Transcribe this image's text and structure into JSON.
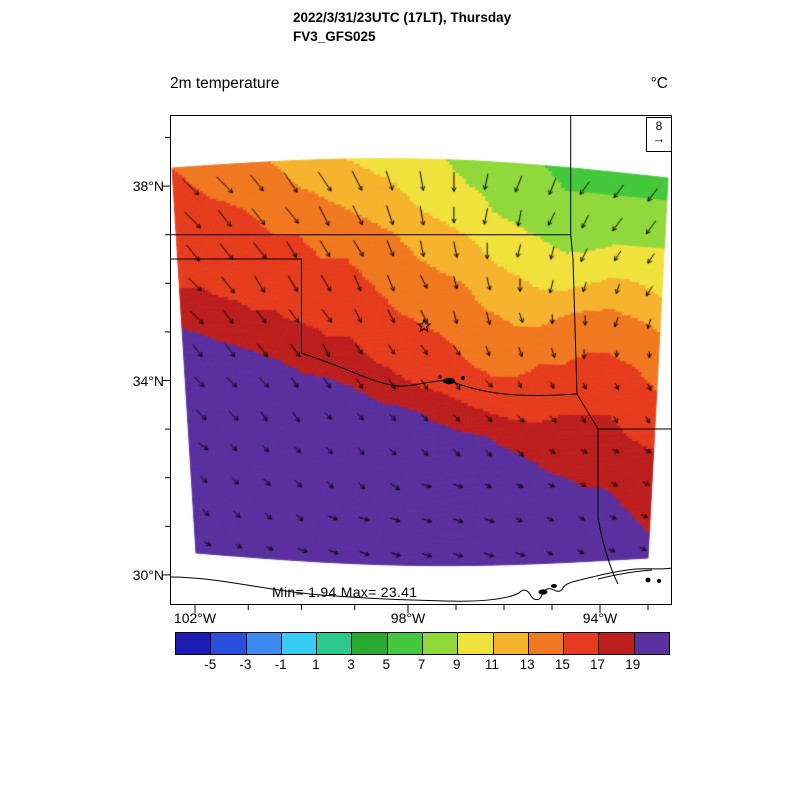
{
  "header": {
    "line1": "2022/3/31/23UTC (17LT), Thursday",
    "line2": "FV3_GFS025"
  },
  "plot": {
    "variable_label": "2m temperature",
    "units_label": "°C",
    "ref_vector_label": "8",
    "stats_label": "Min= 1.94 Max= 23.41"
  },
  "axes": {
    "lat_labels": [
      {
        "text": "38°N",
        "deg": 38
      },
      {
        "text": "34°N",
        "deg": 34
      },
      {
        "text": "30°N",
        "deg": 30
      }
    ],
    "lat_minor_deg": [
      39,
      37,
      36,
      35,
      33,
      32,
      31
    ],
    "lon_labels": [
      {
        "text": "102°W",
        "deg": 102
      },
      {
        "text": "98°W",
        "deg": 98
      },
      {
        "text": "94°W",
        "deg": 94
      }
    ],
    "lon_minor_deg": [
      101,
      100,
      99,
      97,
      96,
      95,
      93
    ]
  },
  "chart_data": {
    "type": "heatmap",
    "title": "2m temperature",
    "units": "°C",
    "model_label": "FV3_GFS025",
    "valid_time_label": "2022/3/31/23UTC (17LT), Thursday",
    "stats": {
      "min": 1.94,
      "max": 23.41
    },
    "levels": [
      -5,
      -3,
      -1,
      1,
      3,
      5,
      7,
      9,
      11,
      13,
      15,
      17,
      19
    ],
    "palette": [
      "#1c1cb4",
      "#2850dc",
      "#3c8cf0",
      "#38ccf4",
      "#2cc88c",
      "#28aa30",
      "#44c83c",
      "#90d83c",
      "#f0e13c",
      "#f5b32e",
      "#f07820",
      "#e63c1e",
      "#bc1e1e",
      "#5a2f9e"
    ],
    "axis_hints": {
      "lat_range": [
        29.4,
        39.5
      ],
      "lon_west_range": [
        102.5,
        92.6
      ],
      "grid": "off",
      "colorbar_position": "bottom"
    },
    "grid": {
      "values": [
        [
          15,
          14.5,
          14,
          13.5,
          13,
          12.5,
          12,
          11,
          10.5,
          10,
          9.5,
          9,
          8.5,
          8,
          7.5,
          7,
          6.5,
          6.5,
          6.5,
          6.5,
          6.5
        ],
        [
          15.5,
          15,
          14.5,
          14,
          13.5,
          13,
          12.5,
          12,
          11.5,
          11,
          10,
          9.5,
          9,
          8.5,
          8,
          7.5,
          7,
          7,
          7,
          7,
          7
        ],
        [
          16,
          15.5,
          15.5,
          15,
          14.5,
          14,
          13.5,
          13,
          12.5,
          12,
          11,
          10.5,
          10,
          9,
          8.5,
          8,
          7.5,
          7.5,
          7.5,
          7.5,
          8
        ],
        [
          16.5,
          16,
          16,
          15.5,
          15,
          15,
          14.5,
          14,
          13.5,
          13,
          12,
          11.5,
          11,
          10,
          9.5,
          9,
          8.5,
          8.5,
          9,
          9,
          9
        ],
        [
          16.5,
          16.5,
          16,
          16,
          15.5,
          15.5,
          15,
          15,
          14.5,
          14,
          13,
          12.5,
          12,
          11,
          10.5,
          10,
          9.5,
          10,
          10.5,
          10.5,
          10
        ],
        [
          17,
          17,
          16.5,
          16.5,
          16.5,
          16,
          15.5,
          15.5,
          15,
          14.5,
          14,
          13.5,
          13,
          12,
          11.5,
          11,
          11,
          11.5,
          12,
          11.5,
          11
        ],
        [
          18,
          17.5,
          17.5,
          17,
          17,
          16.5,
          16.5,
          16,
          15.5,
          15,
          14.5,
          14,
          13.5,
          13,
          12.5,
          12.5,
          13,
          13.5,
          13.5,
          13,
          12.5
        ],
        [
          19.5,
          19,
          18.5,
          18,
          17.5,
          17.5,
          17,
          17,
          16.5,
          16,
          15.5,
          15,
          14.5,
          14,
          13.5,
          13.5,
          14,
          14.5,
          14.5,
          14,
          13.5
        ],
        [
          20.5,
          20,
          20,
          19.5,
          19,
          18.5,
          18,
          17.5,
          17,
          16.5,
          16,
          15.5,
          15,
          14.5,
          14.5,
          15,
          15,
          15.5,
          15.5,
          15,
          14.5
        ],
        [
          21,
          21,
          20.5,
          20.5,
          20,
          19.5,
          19.5,
          19,
          18.5,
          17.5,
          17,
          16.5,
          16,
          15.5,
          15.5,
          15.5,
          16,
          16.5,
          16,
          15.5,
          15
        ],
        [
          21.5,
          21.5,
          21,
          21,
          20.5,
          20.5,
          20,
          20,
          19.5,
          19.5,
          19,
          18.5,
          17.5,
          17,
          16.5,
          16.5,
          17,
          17,
          17,
          16.5,
          16
        ],
        [
          22,
          21.5,
          21.5,
          21,
          21,
          21,
          20.5,
          20.5,
          20,
          20,
          19.5,
          19.5,
          19.5,
          19,
          18.5,
          18,
          18,
          17.5,
          17.5,
          17,
          16.5
        ],
        [
          22,
          22,
          22,
          21.5,
          21.5,
          21,
          21,
          21,
          20.5,
          20.5,
          20,
          20,
          20,
          19.5,
          19.5,
          19,
          18.5,
          18.5,
          18,
          18,
          17.5
        ],
        [
          22.5,
          22.5,
          22,
          22,
          22,
          21.5,
          21.5,
          21,
          21,
          21,
          20.5,
          20.5,
          20,
          20,
          20,
          19.5,
          19.5,
          19,
          19,
          18.5,
          18
        ],
        [
          23,
          22.5,
          22.5,
          22,
          22,
          22,
          21.5,
          21.5,
          21,
          21,
          21,
          20.5,
          20.5,
          20,
          20,
          20,
          19.5,
          19.5,
          19.5,
          19,
          18.5
        ],
        [
          23,
          23,
          22.5,
          22.5,
          22.5,
          22,
          22,
          21.5,
          21.5,
          21.5,
          21,
          21,
          20.5,
          20.5,
          20.5,
          20,
          20,
          20,
          19.5,
          19.5,
          19
        ],
        [
          23,
          23,
          23,
          22.5,
          22.5,
          22.5,
          22,
          22,
          22,
          21.5,
          21.5,
          21,
          21,
          21,
          20.5,
          20.5,
          20.5,
          20,
          20,
          19.5,
          19.5
        ]
      ]
    },
    "wind": {
      "reference": 8,
      "u": [
        [
          5,
          5,
          4,
          4,
          4,
          3,
          2,
          1,
          0,
          -1,
          -2,
          -2,
          -3,
          -3,
          -3
        ],
        [
          5,
          4,
          4,
          4,
          3,
          3,
          2,
          1,
          0,
          -1,
          -1,
          -2,
          -2,
          -3,
          -3
        ],
        [
          4,
          4,
          4,
          3,
          3,
          3,
          2,
          1,
          1,
          0,
          -1,
          -1,
          -2,
          -2,
          -2
        ],
        [
          4,
          4,
          3,
          3,
          3,
          2,
          2,
          2,
          1,
          1,
          0,
          -1,
          -1,
          -1,
          -2
        ],
        [
          4,
          3,
          3,
          3,
          3,
          2,
          2,
          2,
          1,
          1,
          1,
          0,
          0,
          -1,
          -1
        ],
        [
          3,
          3,
          3,
          3,
          2,
          2,
          2,
          2,
          2,
          1,
          1,
          1,
          0,
          0,
          0
        ],
        [
          3,
          3,
          3,
          2,
          2,
          2,
          2,
          2,
          2,
          2,
          1,
          1,
          1,
          1,
          1
        ],
        [
          3,
          3,
          2,
          2,
          2,
          2,
          2,
          2,
          2,
          2,
          2,
          2,
          1,
          1,
          1
        ],
        [
          3,
          2,
          2,
          2,
          2,
          2,
          2,
          2,
          2,
          2,
          2,
          2,
          2,
          2,
          2
        ],
        [
          2,
          2,
          2,
          2,
          2,
          2,
          3,
          3,
          3,
          2,
          2,
          2,
          2,
          2,
          2
        ],
        [
          2,
          2,
          2,
          2,
          3,
          3,
          3,
          3,
          3,
          3,
          2,
          2,
          2,
          2,
          2
        ],
        [
          2,
          2,
          2,
          3,
          3,
          3,
          3,
          3,
          3,
          3,
          3,
          2,
          2,
          2,
          2
        ]
      ],
      "v": [
        [
          -5,
          -5,
          -5,
          -6,
          -6,
          -6,
          -6,
          -6,
          -6,
          -5,
          -5,
          -5,
          -4,
          -4,
          -4
        ],
        [
          -5,
          -5,
          -5,
          -5,
          -6,
          -6,
          -6,
          -6,
          -5,
          -5,
          -5,
          -4,
          -4,
          -4,
          -4
        ],
        [
          -5,
          -5,
          -5,
          -5,
          -5,
          -5,
          -5,
          -5,
          -5,
          -5,
          -4,
          -4,
          -4,
          -3,
          -3
        ],
        [
          -4,
          -5,
          -5,
          -5,
          -5,
          -5,
          -5,
          -4,
          -4,
          -4,
          -4,
          -4,
          -3,
          -3,
          -3
        ],
        [
          -4,
          -4,
          -4,
          -4,
          -4,
          -4,
          -4,
          -4,
          -4,
          -4,
          -3,
          -3,
          -3,
          -3,
          -3
        ],
        [
          -4,
          -4,
          -4,
          -4,
          -4,
          -3,
          -3,
          -3,
          -3,
          -3,
          -3,
          -3,
          -3,
          -2,
          -2
        ],
        [
          -3,
          -3,
          -3,
          -3,
          -3,
          -3,
          -3,
          -3,
          -3,
          -2,
          -2,
          -2,
          -2,
          -2,
          -2
        ],
        [
          -3,
          -3,
          -3,
          -3,
          -2,
          -2,
          -2,
          -2,
          -2,
          -2,
          -2,
          -2,
          -2,
          -2,
          -2
        ],
        [
          -2,
          -2,
          -2,
          -2,
          -2,
          -2,
          -2,
          -2,
          -2,
          -2,
          -2,
          -1,
          -1,
          -1,
          -1
        ],
        [
          -2,
          -2,
          -2,
          -2,
          -2,
          -2,
          -2,
          -1,
          -1,
          -1,
          -1,
          -1,
          -1,
          -1,
          -1
        ],
        [
          -2,
          -2,
          -2,
          -2,
          -1,
          -1,
          -1,
          -1,
          -1,
          -1,
          -1,
          -1,
          -1,
          -1,
          -1
        ],
        [
          -1,
          -1,
          -1,
          -1,
          -1,
          -1,
          -1,
          -1,
          -1,
          -1,
          -1,
          -1,
          -1,
          -1,
          -1
        ]
      ]
    }
  }
}
